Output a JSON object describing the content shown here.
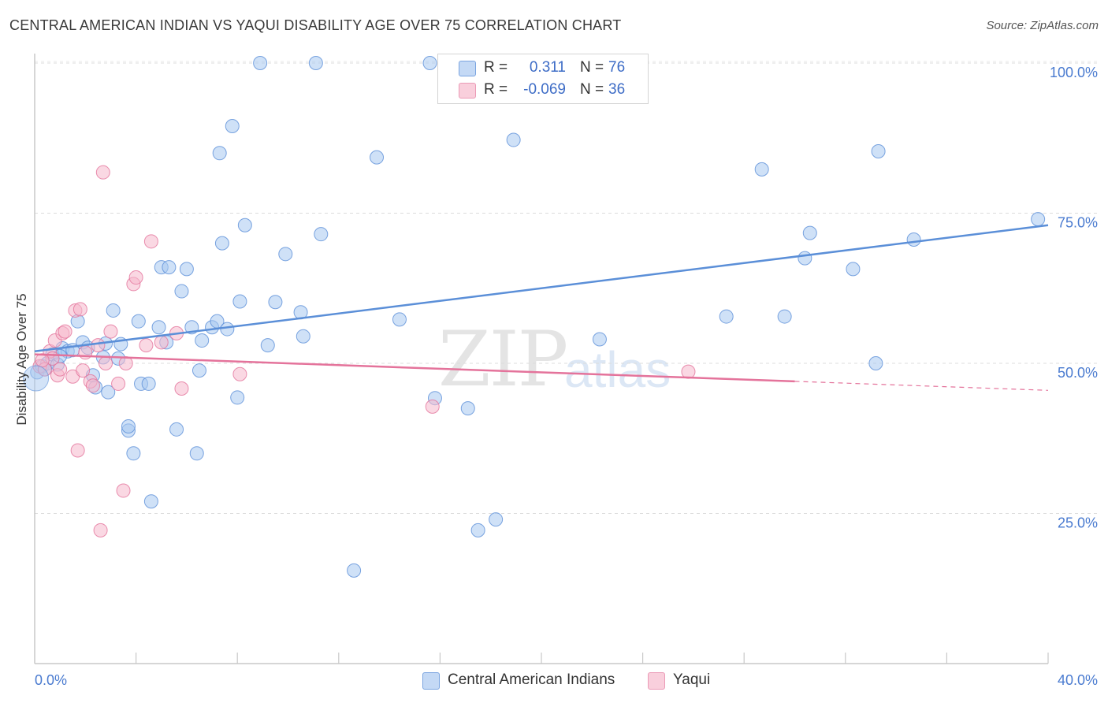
{
  "title": "CENTRAL AMERICAN INDIAN VS YAQUI DISABILITY AGE OVER 75 CORRELATION CHART",
  "source": "Source: ZipAtlas.com",
  "watermark": {
    "zip": "ZIP",
    "atlas": "atlas"
  },
  "legend": {
    "rows": [
      {
        "r_label": "R =",
        "r_value": "0.311",
        "n_label": "N =",
        "n_value": "76",
        "color": "#a8c8f0"
      },
      {
        "r_label": "R =",
        "r_value": "-0.069",
        "n_label": "N =",
        "n_value": "36",
        "color": "#f5b8cc"
      }
    ]
  },
  "bottom_legend": [
    {
      "label": "Central American Indians",
      "color": "#a8c8f0"
    },
    {
      "label": "Yaqui",
      "color": "#f5b8cc"
    }
  ],
  "chart_data": {
    "type": "scatter",
    "title": "CENTRAL AMERICAN INDIAN VS YAQUI DISABILITY AGE OVER 75 CORRELATION CHART",
    "xlabel": "",
    "ylabel": "Disability Age Over 75",
    "xlim": [
      0,
      40
    ],
    "ylim": [
      0,
      105
    ],
    "x_tick_labels": [
      "0.0%",
      "40.0%"
    ],
    "y_tick_labels": [
      "25.0%",
      "50.0%",
      "75.0%",
      "100.0%"
    ],
    "y_ticks": [
      25,
      50,
      75,
      100
    ],
    "grid": true,
    "legend_position": "top-center",
    "series": [
      {
        "name": "Central American Indians",
        "color": "#5b8fd8",
        "fill": "#a8c8f0",
        "trend": {
          "x": [
            0,
            40
          ],
          "y": [
            52.0,
            73.0
          ]
        },
        "points": [
          {
            "x": 0.1,
            "y": 48.5
          },
          {
            "x": 0.3,
            "y": 49.5
          },
          {
            "x": 0.5,
            "y": 50.0
          },
          {
            "x": 0.7,
            "y": 51.5
          },
          {
            "x": 0.9,
            "y": 49.8
          },
          {
            "x": 1.1,
            "y": 52.5
          },
          {
            "x": 1.3,
            "y": 52.0
          },
          {
            "x": 1.5,
            "y": 52.2
          },
          {
            "x": 1.7,
            "y": 57.0
          },
          {
            "x": 1.9,
            "y": 53.5
          },
          {
            "x": 2.3,
            "y": 48.0
          },
          {
            "x": 2.4,
            "y": 46.0
          },
          {
            "x": 2.7,
            "y": 51.0
          },
          {
            "x": 2.8,
            "y": 53.3
          },
          {
            "x": 2.9,
            "y": 45.2
          },
          {
            "x": 3.1,
            "y": 58.8
          },
          {
            "x": 3.3,
            "y": 50.8
          },
          {
            "x": 3.4,
            "y": 53.2
          },
          {
            "x": 3.7,
            "y": 38.8
          },
          {
            "x": 3.7,
            "y": 39.5
          },
          {
            "x": 3.9,
            "y": 35.0
          },
          {
            "x": 4.1,
            "y": 57.0
          },
          {
            "x": 4.2,
            "y": 46.6
          },
          {
            "x": 4.5,
            "y": 46.6
          },
          {
            "x": 4.6,
            "y": 27.0
          },
          {
            "x": 4.9,
            "y": 56.0
          },
          {
            "x": 5.0,
            "y": 66.0
          },
          {
            "x": 5.2,
            "y": 53.5
          },
          {
            "x": 5.3,
            "y": 66.0
          },
          {
            "x": 5.6,
            "y": 39.0
          },
          {
            "x": 5.8,
            "y": 62.0
          },
          {
            "x": 6.0,
            "y": 65.7
          },
          {
            "x": 6.2,
            "y": 56.0
          },
          {
            "x": 6.4,
            "y": 35.0
          },
          {
            "x": 6.5,
            "y": 48.8
          },
          {
            "x": 6.6,
            "y": 53.8
          },
          {
            "x": 7.0,
            "y": 56.0
          },
          {
            "x": 7.2,
            "y": 57.0
          },
          {
            "x": 7.3,
            "y": 85.0
          },
          {
            "x": 7.4,
            "y": 70.0
          },
          {
            "x": 7.6,
            "y": 55.7
          },
          {
            "x": 7.8,
            "y": 89.5
          },
          {
            "x": 8.0,
            "y": 44.3
          },
          {
            "x": 8.1,
            "y": 60.3
          },
          {
            "x": 8.3,
            "y": 73.0
          },
          {
            "x": 8.9,
            "y": 100.0
          },
          {
            "x": 9.2,
            "y": 53.0
          },
          {
            "x": 9.5,
            "y": 60.2
          },
          {
            "x": 9.9,
            "y": 68.2
          },
          {
            "x": 10.5,
            "y": 58.5
          },
          {
            "x": 10.6,
            "y": 54.5
          },
          {
            "x": 11.1,
            "y": 100.0
          },
          {
            "x": 11.3,
            "y": 71.5
          },
          {
            "x": 12.6,
            "y": 15.5
          },
          {
            "x": 13.5,
            "y": 84.3
          },
          {
            "x": 14.4,
            "y": 57.3
          },
          {
            "x": 15.6,
            "y": 100.0
          },
          {
            "x": 15.8,
            "y": 44.2
          },
          {
            "x": 17.1,
            "y": 42.5
          },
          {
            "x": 17.5,
            "y": 22.2
          },
          {
            "x": 18.2,
            "y": 24.0
          },
          {
            "x": 18.9,
            "y": 87.2
          },
          {
            "x": 22.3,
            "y": 54.0
          },
          {
            "x": 27.3,
            "y": 57.8
          },
          {
            "x": 28.7,
            "y": 82.3
          },
          {
            "x": 29.6,
            "y": 57.8
          },
          {
            "x": 30.4,
            "y": 67.5
          },
          {
            "x": 30.6,
            "y": 71.7
          },
          {
            "x": 32.3,
            "y": 65.7
          },
          {
            "x": 33.2,
            "y": 50.0
          },
          {
            "x": 33.3,
            "y": 85.3
          },
          {
            "x": 34.7,
            "y": 70.6
          },
          {
            "x": 39.6,
            "y": 74.0
          },
          {
            "x": 0.4,
            "y": 49.0
          },
          {
            "x": 1.0,
            "y": 51.2
          },
          {
            "x": 2.1,
            "y": 52.6
          }
        ]
      },
      {
        "name": "Yaqui",
        "color": "#e4739b",
        "fill": "#f5b8cc",
        "trend": {
          "x": [
            0,
            30
          ],
          "y": [
            51.5,
            47.0
          ]
        },
        "trend_dashed": {
          "x": [
            30,
            40
          ],
          "y": [
            47.0,
            45.5
          ]
        },
        "points": [
          {
            "x": 0.2,
            "y": 49.5
          },
          {
            "x": 0.4,
            "y": 49.0
          },
          {
            "x": 0.6,
            "y": 52.0
          },
          {
            "x": 0.7,
            "y": 50.8
          },
          {
            "x": 0.8,
            "y": 53.8
          },
          {
            "x": 0.9,
            "y": 48.0
          },
          {
            "x": 1.0,
            "y": 49.0
          },
          {
            "x": 1.1,
            "y": 55.0
          },
          {
            "x": 1.2,
            "y": 55.3
          },
          {
            "x": 1.5,
            "y": 47.8
          },
          {
            "x": 1.6,
            "y": 58.8
          },
          {
            "x": 1.7,
            "y": 35.5
          },
          {
            "x": 1.8,
            "y": 59.0
          },
          {
            "x": 1.9,
            "y": 48.8
          },
          {
            "x": 2.2,
            "y": 47.0
          },
          {
            "x": 2.3,
            "y": 46.3
          },
          {
            "x": 2.5,
            "y": 53.0
          },
          {
            "x": 2.6,
            "y": 22.2
          },
          {
            "x": 2.7,
            "y": 81.8
          },
          {
            "x": 2.8,
            "y": 50.0
          },
          {
            "x": 3.0,
            "y": 55.3
          },
          {
            "x": 3.3,
            "y": 46.6
          },
          {
            "x": 3.5,
            "y": 28.8
          },
          {
            "x": 3.9,
            "y": 63.2
          },
          {
            "x": 4.0,
            "y": 64.3
          },
          {
            "x": 4.4,
            "y": 53.0
          },
          {
            "x": 4.6,
            "y": 70.3
          },
          {
            "x": 5.0,
            "y": 53.5
          },
          {
            "x": 5.6,
            "y": 55.0
          },
          {
            "x": 5.8,
            "y": 45.8
          },
          {
            "x": 8.1,
            "y": 48.2
          },
          {
            "x": 15.7,
            "y": 42.8
          },
          {
            "x": 25.8,
            "y": 48.6
          },
          {
            "x": 0.3,
            "y": 50.5
          },
          {
            "x": 3.6,
            "y": 50.0
          },
          {
            "x": 2.0,
            "y": 51.8
          }
        ]
      }
    ]
  }
}
